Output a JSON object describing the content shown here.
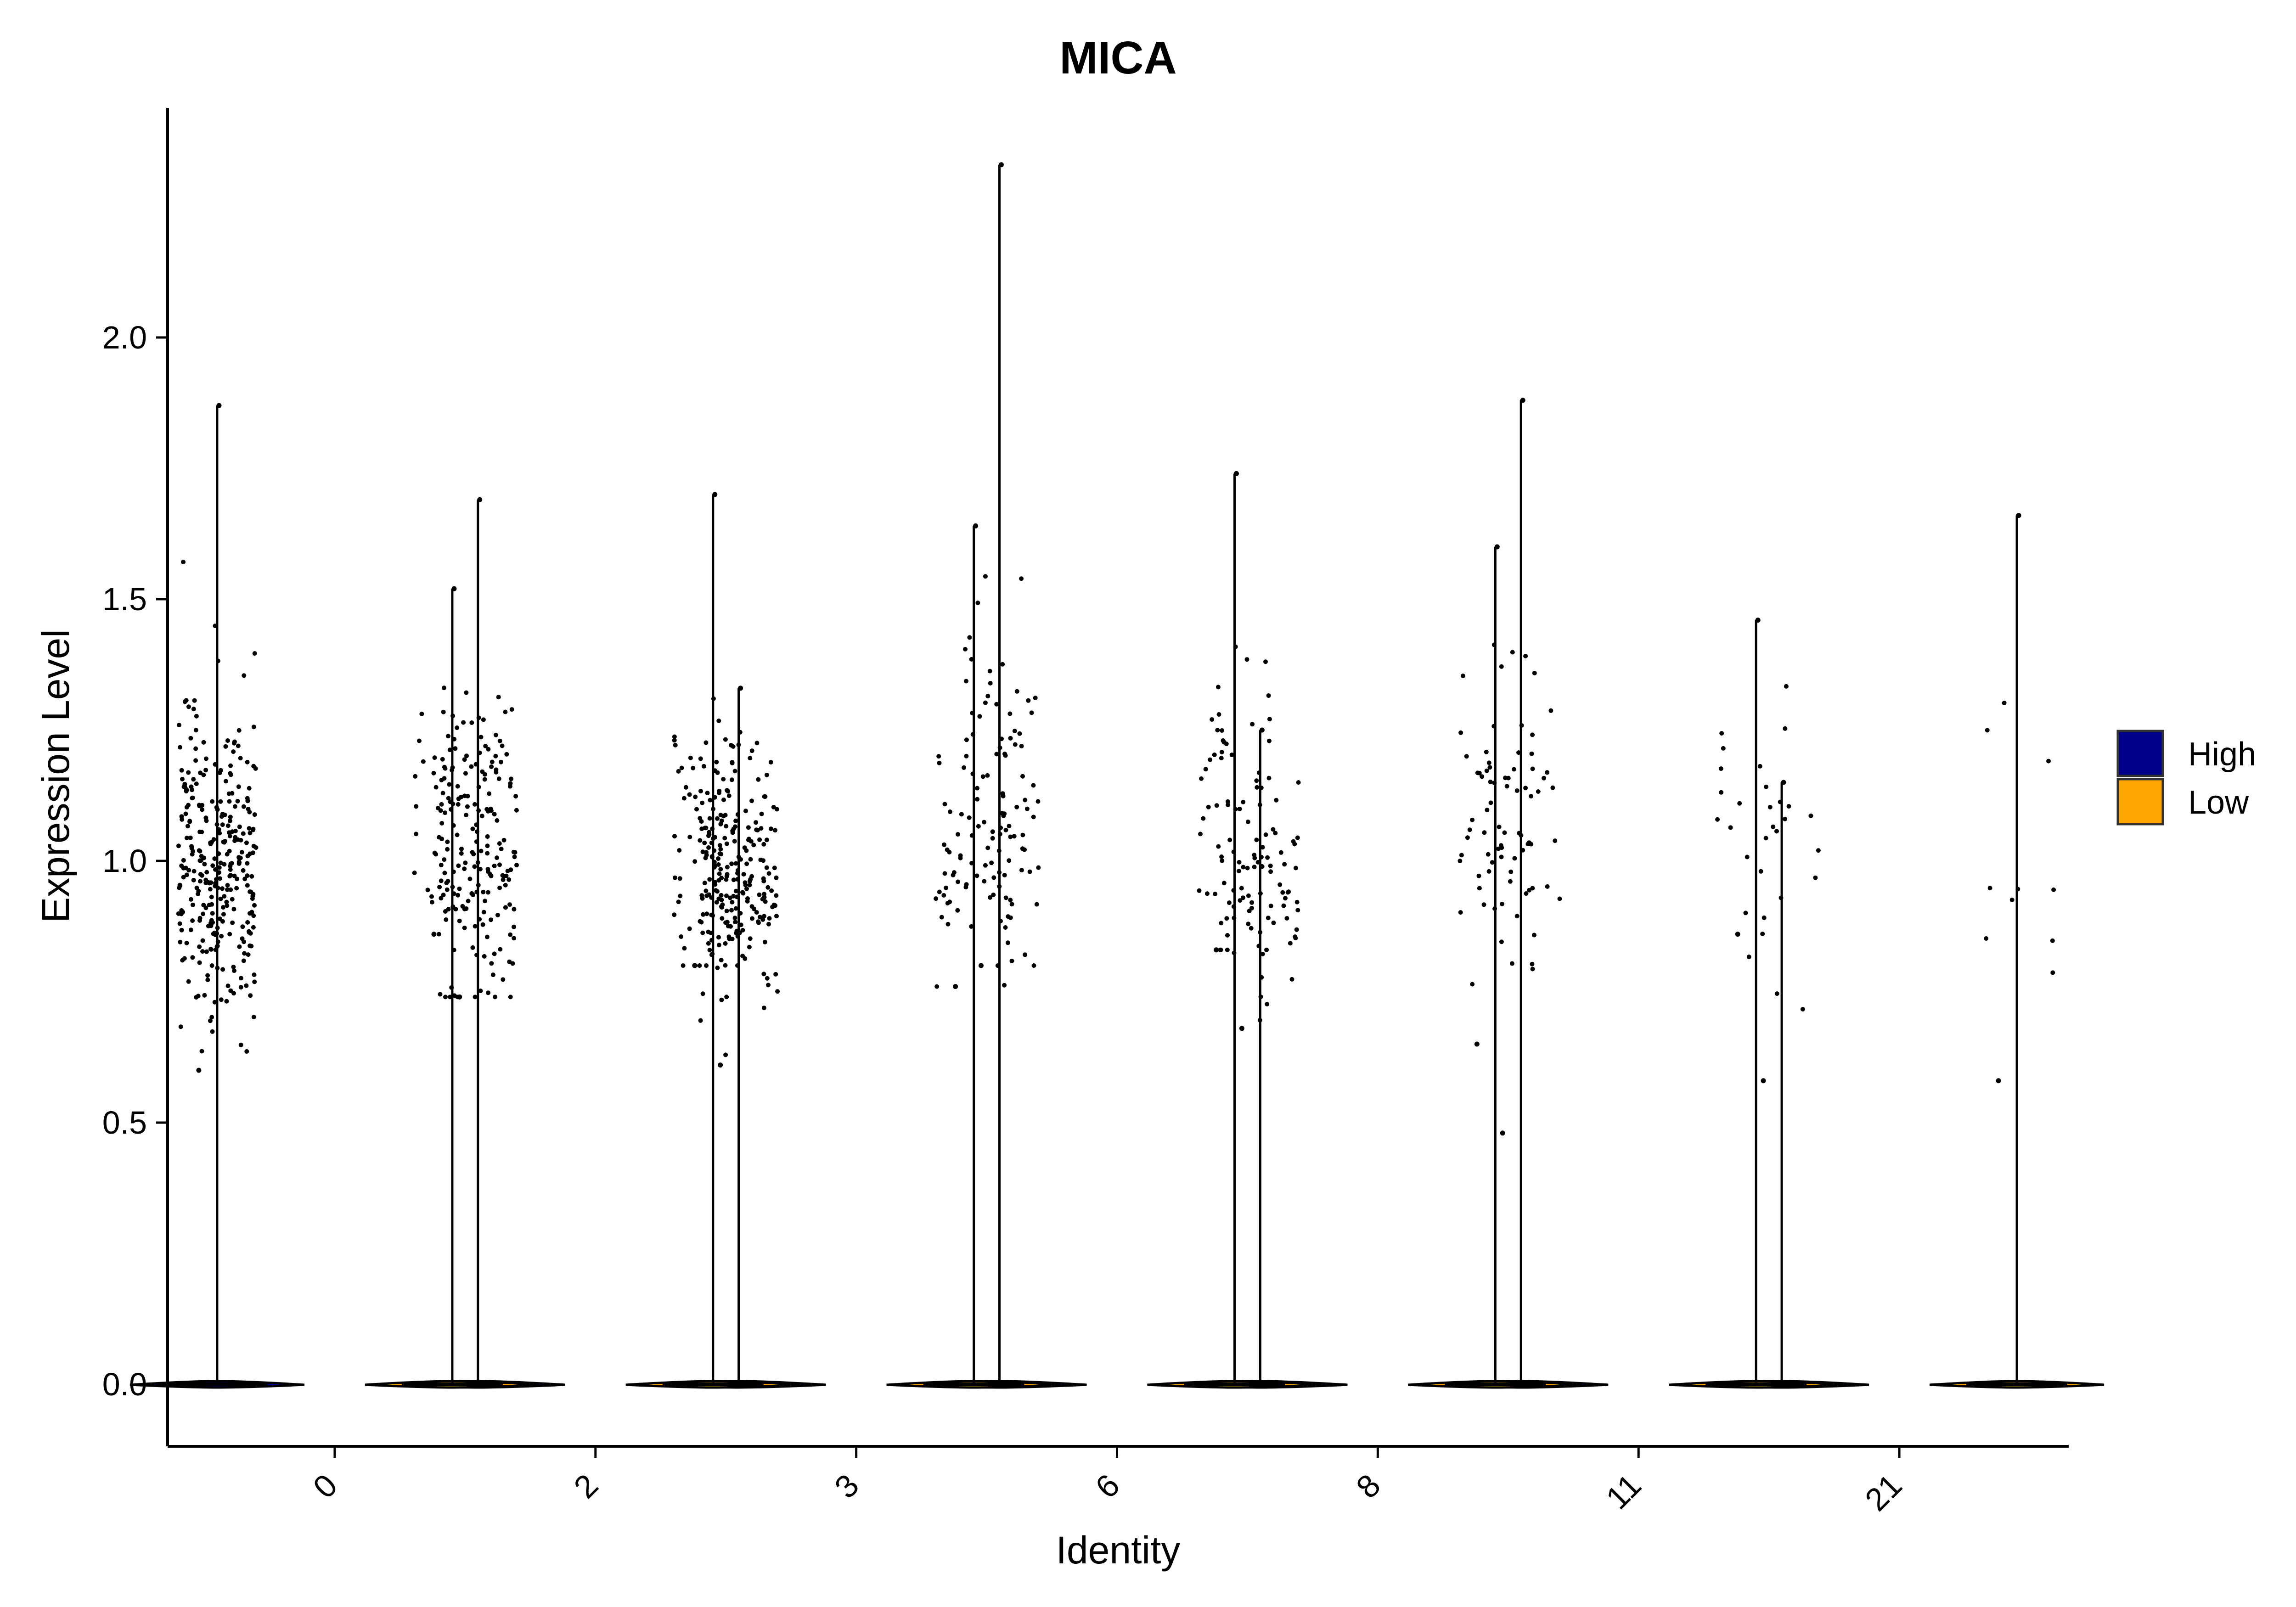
{
  "chart_data": {
    "type": "violin",
    "title": "MICA",
    "xlabel": "Identity",
    "ylabel": "Expression Level",
    "ylim": [
      -0.12,
      2.45
    ],
    "yticks": [
      0.0,
      0.5,
      1.0,
      1.5,
      2.0
    ],
    "ytick_labels": [
      "0.0",
      "0.5",
      "1.0",
      "1.5",
      "2.0"
    ],
    "categories": [
      "0",
      "2",
      "3",
      "6",
      "8",
      "11",
      "21"
    ],
    "legend": {
      "position": "right",
      "entries": [
        {
          "name": "High",
          "color": "#00008B"
        },
        {
          "name": "Low",
          "color": "#FFA500"
        }
      ]
    },
    "series": [
      {
        "name": "High",
        "color": "#00008B",
        "max": [
          1.87,
          1.69,
          1.33,
          2.33,
          1.25,
          1.88,
          1.15
        ],
        "expressing_center": [
          1.0,
          1.02,
          0.95,
          1.1,
          0.93,
          1.1,
          0.9
        ],
        "expressing_spread": [
          0.2,
          0.2,
          0.15,
          0.22,
          0.15,
          0.25,
          0.2
        ],
        "expressing_points": [
          320,
          170,
          190,
          70,
          60,
          40,
          10
        ],
        "min_point": [
          0.6,
          0.74,
          0.61,
          0.8,
          0.68,
          0.48,
          0.58
        ]
      },
      {
        "name": "Low",
        "color": "#FFA500",
        "max": [
          1.52,
          1.7,
          1.64,
          1.74,
          1.6,
          1.46,
          1.66
        ],
        "expressing_center": [
          1.08,
          1.05,
          0.97,
          1.12,
          1.05,
          1.1,
          1.0
        ],
        "expressing_spread": [
          0.15,
          0.18,
          0.15,
          0.2,
          0.2,
          0.18,
          0.22
        ],
        "expressing_points": [
          45,
          90,
          55,
          60,
          40,
          20,
          10
        ],
        "min_point": [
          0.86,
          0.8,
          0.76,
          0.83,
          0.65,
          0.86,
          0.58
        ]
      }
    ]
  }
}
